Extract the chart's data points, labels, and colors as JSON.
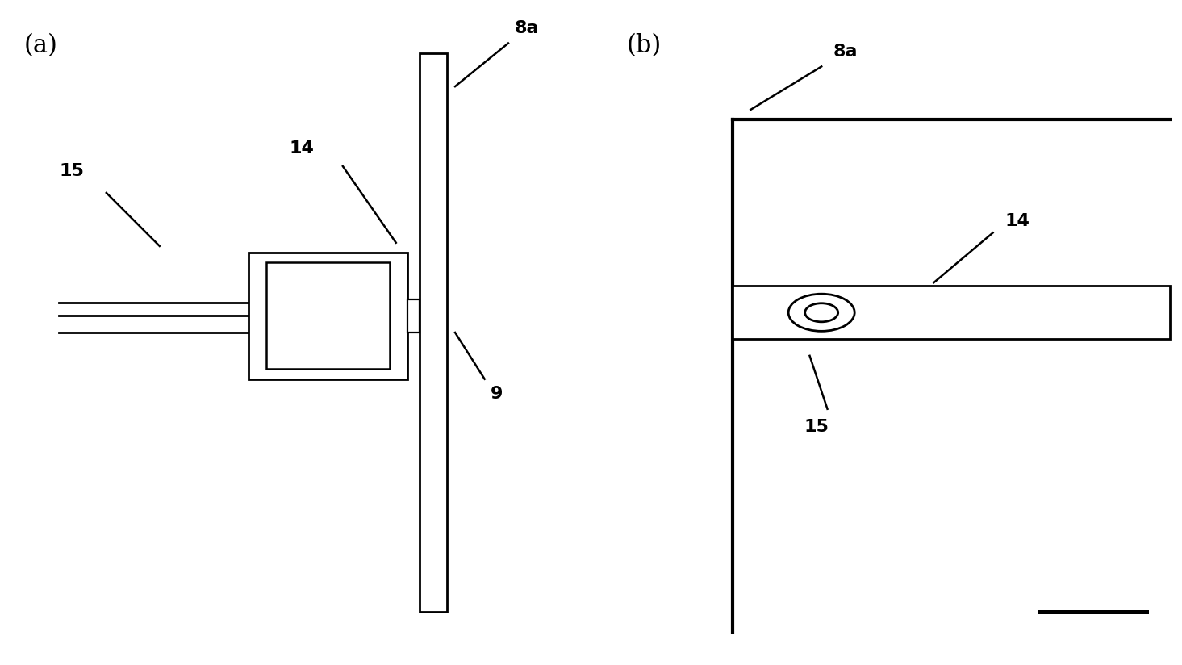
{
  "bg_color": "#ffffff",
  "line_color": "#000000",
  "line_width": 2.0,
  "fig_width": 14.65,
  "fig_height": 8.24,
  "label_a": "(a)",
  "label_b": "(b)",
  "labels": {
    "8a_a": "8a",
    "14_a": "14",
    "15_a": "15",
    "9_a": "9",
    "8a_b": "8a",
    "14_b": "14",
    "15_b": "15"
  }
}
